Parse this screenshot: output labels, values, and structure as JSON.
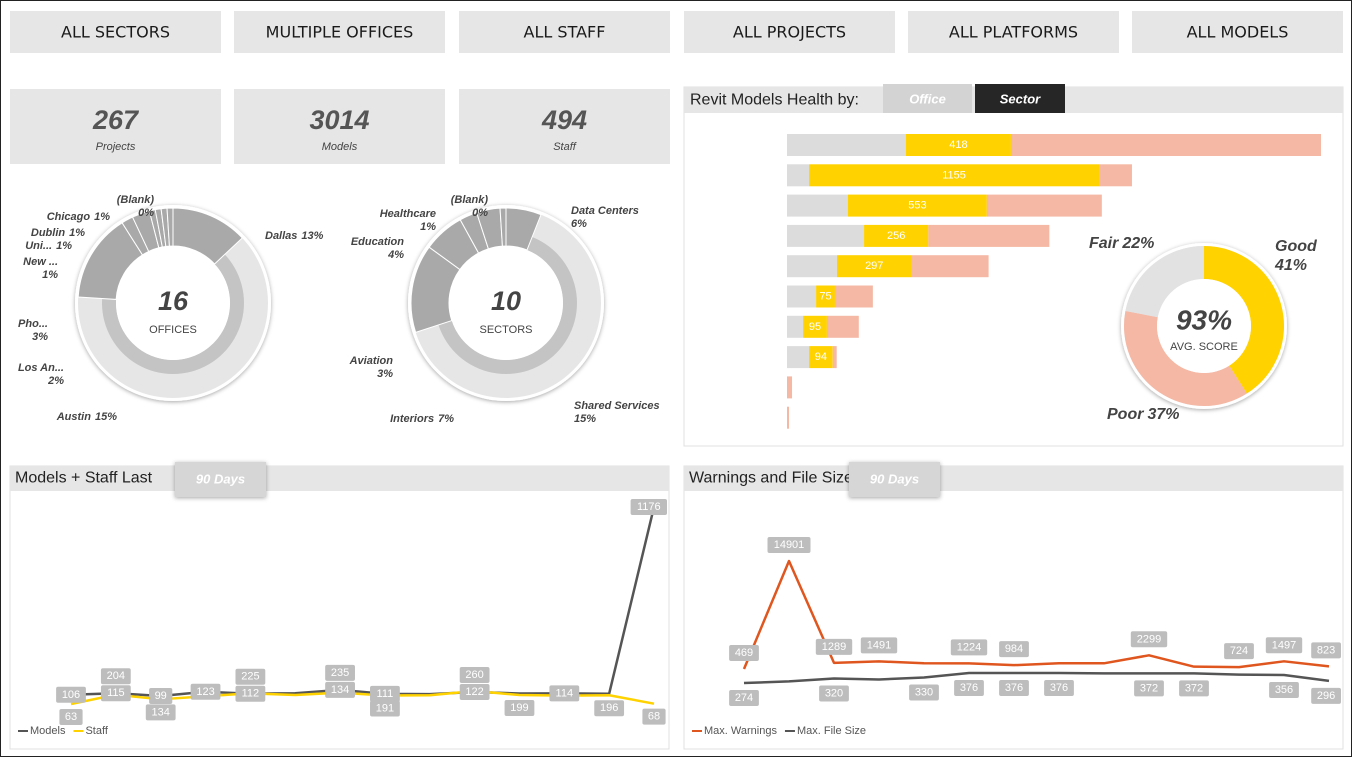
{
  "filters": [
    "ALL SECTORS",
    "MULTIPLE OFFICES",
    "ALL STAFF",
    "ALL PROJECTS",
    "ALL PLATFORMS",
    "ALL MODELS"
  ],
  "kpis": [
    {
      "value": 267,
      "label": "Projects"
    },
    {
      "value": 3014,
      "label": "Models"
    },
    {
      "value": 494,
      "label": "Staff"
    }
  ],
  "chart_data": [
    {
      "type": "donut",
      "center_value": 16,
      "center_label": "OFFICES",
      "categories": [
        "Dallas",
        "Austin",
        "Los An...",
        "Pho...",
        "New ...",
        "Uni...",
        "Dublin",
        "Chicago",
        "(Blank)"
      ],
      "values": [
        13,
        15,
        2,
        3,
        1,
        1,
        1,
        1,
        0
      ],
      "value_labels": [
        "13%",
        "15%",
        "2%",
        "3%",
        "1%",
        "1%",
        "1%",
        "1%",
        "0%"
      ],
      "color": "#a9a9a9"
    },
    {
      "type": "donut",
      "center_value": 10,
      "center_label": "SECTORS",
      "categories": [
        "Data Centers",
        "Shared Services",
        "Interiors",
        "Aviation",
        "Education",
        "Healthcare",
        "(Blank)"
      ],
      "values": [
        6,
        15,
        7,
        3,
        4,
        1,
        0
      ],
      "value_labels": [
        "6%",
        "15%",
        "7%",
        "3%",
        "4%",
        "1%",
        "0%"
      ],
      "color": "#a9a9a9"
    },
    {
      "type": "stacked-bar",
      "title": "Revit Models Health by:",
      "toggles": [
        "Office",
        "Sector"
      ],
      "active_toggle": 1,
      "categories": [
        null,
        null,
        null,
        null,
        null,
        null,
        null,
        null,
        null,
        null
      ],
      "series": [
        {
          "color": "#dcdcdc",
          "values": [
            474,
            88,
            243,
            307,
            199,
            116,
            64,
            88,
            0,
            0
          ]
        },
        {
          "color": "#ffd200",
          "values": [
            418,
            1155,
            553,
            256,
            297,
            75,
            95,
            94,
            null,
            null
          ]
        },
        {
          "color": "#f5b8a4",
          "values": [
            1235,
            131,
            458,
            482,
            307,
            151,
            127,
            16,
            20,
            8
          ]
        }
      ]
    },
    {
      "type": "donut",
      "center": {
        "value": 93,
        "label": "93%"
      },
      "center_label": "AVG. SCORE",
      "categories": [
        "Good",
        "Poor",
        "Fair"
      ],
      "values": [
        41,
        37,
        22
      ],
      "value_labels": [
        "41%",
        "37%",
        "22%"
      ],
      "colors": [
        "#ffd200",
        "#f5b8a4",
        "#e2e2e2"
      ]
    },
    {
      "type": "line",
      "title": "Models + Staff Last",
      "period_button": "90 Days",
      "series": [
        {
          "name": "Models",
          "color": "#555555",
          "values": [
            106,
            115,
            99,
            123,
            112,
            115,
            134,
            111,
            110,
            122,
            113,
            114,
            112,
            1176
          ],
          "value_labels": [
            "106",
            "115",
            "99",
            "123",
            "112",
            null,
            "134",
            "111",
            null,
            "122",
            null,
            "114",
            null,
            "1176"
          ]
        },
        {
          "name": "Staff",
          "color": "#ffd200",
          "values": [
            63,
            204,
            134,
            180,
            225,
            200,
            235,
            191,
            195,
            260,
            199,
            190,
            196,
            68
          ],
          "value_labels": [
            "63",
            "204",
            "134",
            null,
            "225",
            null,
            "235",
            "191",
            null,
            "260",
            "199",
            null,
            "196",
            "68"
          ]
        }
      ]
    },
    {
      "type": "line",
      "title": "Warnings and File Size Last",
      "period_button": "90 Days",
      "series": [
        {
          "name": "Max. Warnings",
          "color": "#e0561f",
          "values": [
            469,
            14901,
            1289,
            1491,
            1230,
            1224,
            984,
            1230,
            1230,
            2299,
            780,
            724,
            1497,
            823
          ],
          "value_labels": [
            "469",
            "14901",
            "1289",
            "1491",
            null,
            "1224",
            "984",
            null,
            null,
            "2299",
            null,
            "724",
            "1497",
            "823"
          ]
        },
        {
          "name": "Max. File Size",
          "color": "#555555",
          "values": [
            274,
            290,
            320,
            310,
            330,
            376,
            376,
            376,
            372,
            372,
            372,
            360,
            356,
            296
          ],
          "value_labels": [
            "274",
            null,
            "320",
            null,
            "330",
            "376",
            "376",
            "376",
            null,
            "372",
            "372",
            null,
            "356",
            "296"
          ]
        }
      ]
    }
  ]
}
